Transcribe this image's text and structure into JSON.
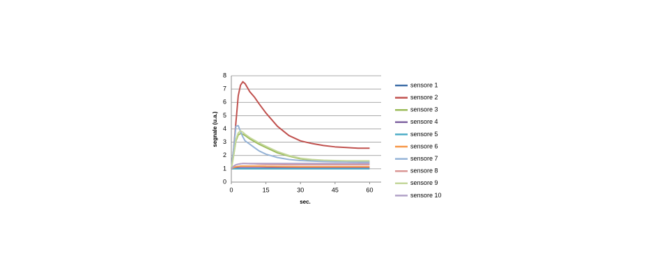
{
  "chart_data": {
    "type": "line",
    "x_label": "sec.",
    "y_label": "segnale (u.a.)",
    "x": [
      0,
      1,
      2,
      3,
      4,
      5,
      6,
      8,
      10,
      12,
      15,
      20,
      25,
      30,
      35,
      40,
      45,
      50,
      55,
      60
    ],
    "xlim": [
      0,
      65
    ],
    "xticks": [
      0,
      15,
      30,
      45,
      60
    ],
    "ylim": [
      0,
      8
    ],
    "yticks": [
      0,
      1,
      2,
      3,
      4,
      5,
      6,
      7,
      8
    ],
    "grid": true,
    "legend": "right",
    "series": [
      {
        "name": "sensore 1",
        "color": "#3f6fa8",
        "values": [
          1,
          1.02,
          1.03,
          1.03,
          1.04,
          1.04,
          1.04,
          1.05,
          1.05,
          1.05,
          1.05,
          1.05,
          1.05,
          1.05,
          1.05,
          1.05,
          1.05,
          1.05,
          1.05,
          1.05
        ]
      },
      {
        "name": "sensore 2",
        "color": "#c0504d",
        "values": [
          1,
          2.5,
          4.5,
          6.5,
          7.3,
          7.55,
          7.4,
          6.8,
          6.4,
          5.9,
          5.2,
          4.2,
          3.5,
          3.1,
          2.9,
          2.75,
          2.65,
          2.6,
          2.55,
          2.55
        ]
      },
      {
        "name": "sensore 3",
        "color": "#9bbb59",
        "values": [
          1,
          2,
          3.1,
          3.55,
          3.65,
          3.6,
          3.5,
          3.25,
          3.05,
          2.85,
          2.6,
          2.2,
          1.95,
          1.75,
          1.65,
          1.6,
          1.57,
          1.55,
          1.55,
          1.55
        ]
      },
      {
        "name": "sensore 4",
        "color": "#8064a2",
        "values": [
          1,
          1.05,
          1.07,
          1.08,
          1.08,
          1.08,
          1.08,
          1.08,
          1.08,
          1.08,
          1.08,
          1.08,
          1.08,
          1.08,
          1.08,
          1.08,
          1.08,
          1.08,
          1.08,
          1.08
        ]
      },
      {
        "name": "sensore 5",
        "color": "#4bacc6",
        "values": [
          1,
          1,
          1,
          1,
          1,
          1,
          1,
          1,
          1,
          1,
          1,
          1,
          1,
          1,
          1,
          1,
          1,
          1,
          1,
          1
        ]
      },
      {
        "name": "sensore 6",
        "color": "#f79646",
        "values": [
          1,
          1.1,
          1.15,
          1.18,
          1.2,
          1.2,
          1.2,
          1.2,
          1.2,
          1.2,
          1.18,
          1.17,
          1.16,
          1.15,
          1.15,
          1.15,
          1.15,
          1.15,
          1.15,
          1.15
        ]
      },
      {
        "name": "sensore 7",
        "color": "#95b3d7",
        "values": [
          1,
          2.5,
          4.2,
          4.25,
          3.8,
          3.4,
          3.1,
          2.85,
          2.6,
          2.35,
          2.1,
          1.85,
          1.7,
          1.62,
          1.58,
          1.55,
          1.53,
          1.52,
          1.5,
          1.5
        ]
      },
      {
        "name": "sensore 8",
        "color": "#da9694",
        "values": [
          1,
          1.2,
          1.3,
          1.35,
          1.38,
          1.4,
          1.4,
          1.38,
          1.37,
          1.35,
          1.33,
          1.32,
          1.3,
          1.3,
          1.3,
          1.3,
          1.3,
          1.3,
          1.3,
          1.3
        ]
      },
      {
        "name": "sensore 9",
        "color": "#c4d79b",
        "values": [
          1,
          2,
          3.2,
          3.7,
          3.85,
          3.75,
          3.6,
          3.35,
          3.15,
          2.95,
          2.7,
          2.3,
          2.0,
          1.8,
          1.7,
          1.65,
          1.62,
          1.6,
          1.6,
          1.6
        ]
      },
      {
        "name": "sensore 10",
        "color": "#b1a0c7",
        "values": [
          1,
          1.2,
          1.3,
          1.35,
          1.38,
          1.4,
          1.4,
          1.4,
          1.4,
          1.4,
          1.4,
          1.4,
          1.4,
          1.4,
          1.4,
          1.4,
          1.4,
          1.4,
          1.4,
          1.4
        ]
      }
    ]
  }
}
